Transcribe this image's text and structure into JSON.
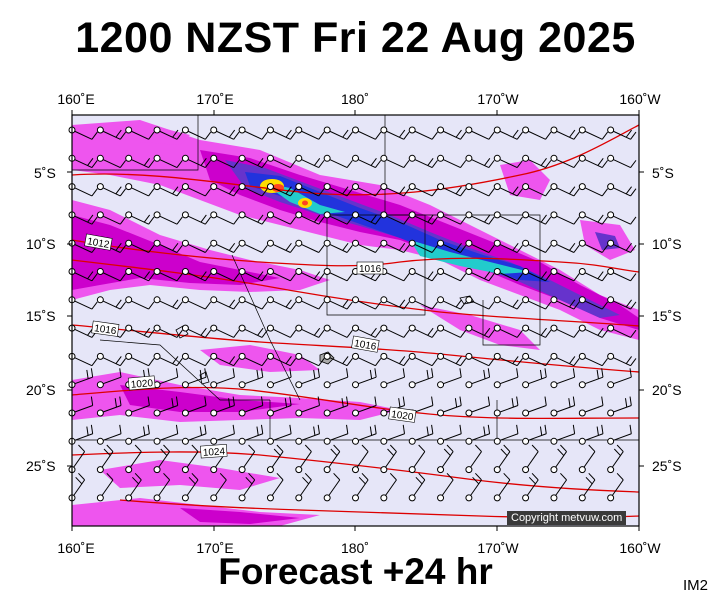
{
  "title": "1200 NZST Fri 22 Aug 2025",
  "subtitle": "Forecast +24 hr",
  "panel_id": "IM2",
  "credit": "Copyright metvuw.com",
  "map": {
    "lon_labels": [
      "160˚E",
      "170˚E",
      "180˚",
      "170˚W",
      "160˚W"
    ],
    "lat_labels": [
      "5˚S",
      "10˚S",
      "15˚S",
      "20˚S",
      "25˚S"
    ],
    "isobar_labels": [
      "1012",
      "1016",
      "1016",
      "1016",
      "1020",
      "1020",
      "1024"
    ],
    "colors": {
      "background": "#e6e6f8",
      "precip_light": "#ee55ee",
      "precip_medium": "#cc00cc",
      "precip_heavy": "#6633cc",
      "precip_very_heavy": "#2233dd",
      "precip_extreme": "#22cccc",
      "precip_peak": "#ffdd00",
      "isobar": "#dd0000"
    }
  }
}
